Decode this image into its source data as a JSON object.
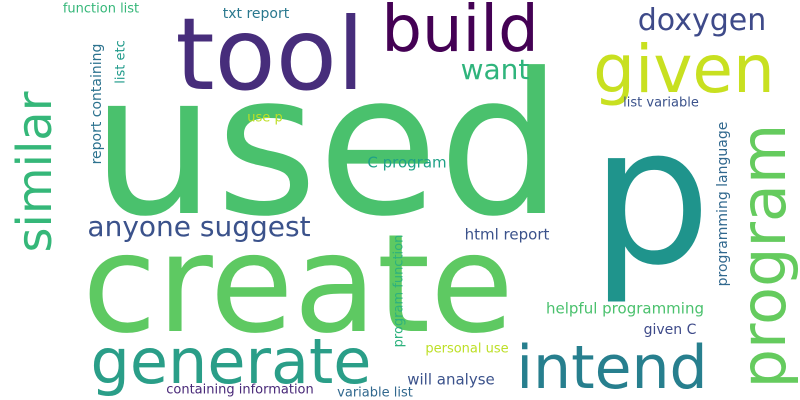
{
  "words": [
    {
      "text": "used",
      "color": "#4ac16d"
    },
    {
      "text": "create",
      "color": "#5ec962"
    },
    {
      "text": "p",
      "color": "#1f948c"
    },
    {
      "text": "tool",
      "color": "#472d7b"
    },
    {
      "text": "build",
      "color": "#440154"
    },
    {
      "text": "given",
      "color": "#c8e020"
    },
    {
      "text": "program",
      "color": "#65cb5e"
    },
    {
      "text": "similar",
      "color": "#35b779"
    },
    {
      "text": "generate",
      "color": "#2a9e88"
    },
    {
      "text": "intend",
      "color": "#277f8e"
    },
    {
      "text": "doxygen",
      "color": "#3e4a89"
    },
    {
      "text": "want",
      "color": "#2fb47c"
    },
    {
      "text": "anyone suggest",
      "color": "#3b528b"
    },
    {
      "text": "function list",
      "color": "#35b779"
    },
    {
      "text": "txt report",
      "color": "#2a788e"
    },
    {
      "text": "report containing",
      "color": "#2c728e"
    },
    {
      "text": "list etc",
      "color": "#1f9a8a"
    },
    {
      "text": "list variable",
      "color": "#3b528b"
    },
    {
      "text": "use p",
      "color": "#bddf26"
    },
    {
      "text": "C program",
      "color": "#1fa187"
    },
    {
      "text": "programming language",
      "color": "#31688e"
    },
    {
      "text": "html report",
      "color": "#3b528b"
    },
    {
      "text": "helpful programming",
      "color": "#4ac16d"
    },
    {
      "text": "given C",
      "color": "#3e4a89"
    },
    {
      "text": "program function",
      "color": "#2db27d"
    },
    {
      "text": "personal use",
      "color": "#bddf26"
    },
    {
      "text": "will analyse",
      "color": "#3b528b"
    },
    {
      "text": "containing information",
      "color": "#482878"
    },
    {
      "text": "variable list",
      "color": "#31688e"
    }
  ]
}
